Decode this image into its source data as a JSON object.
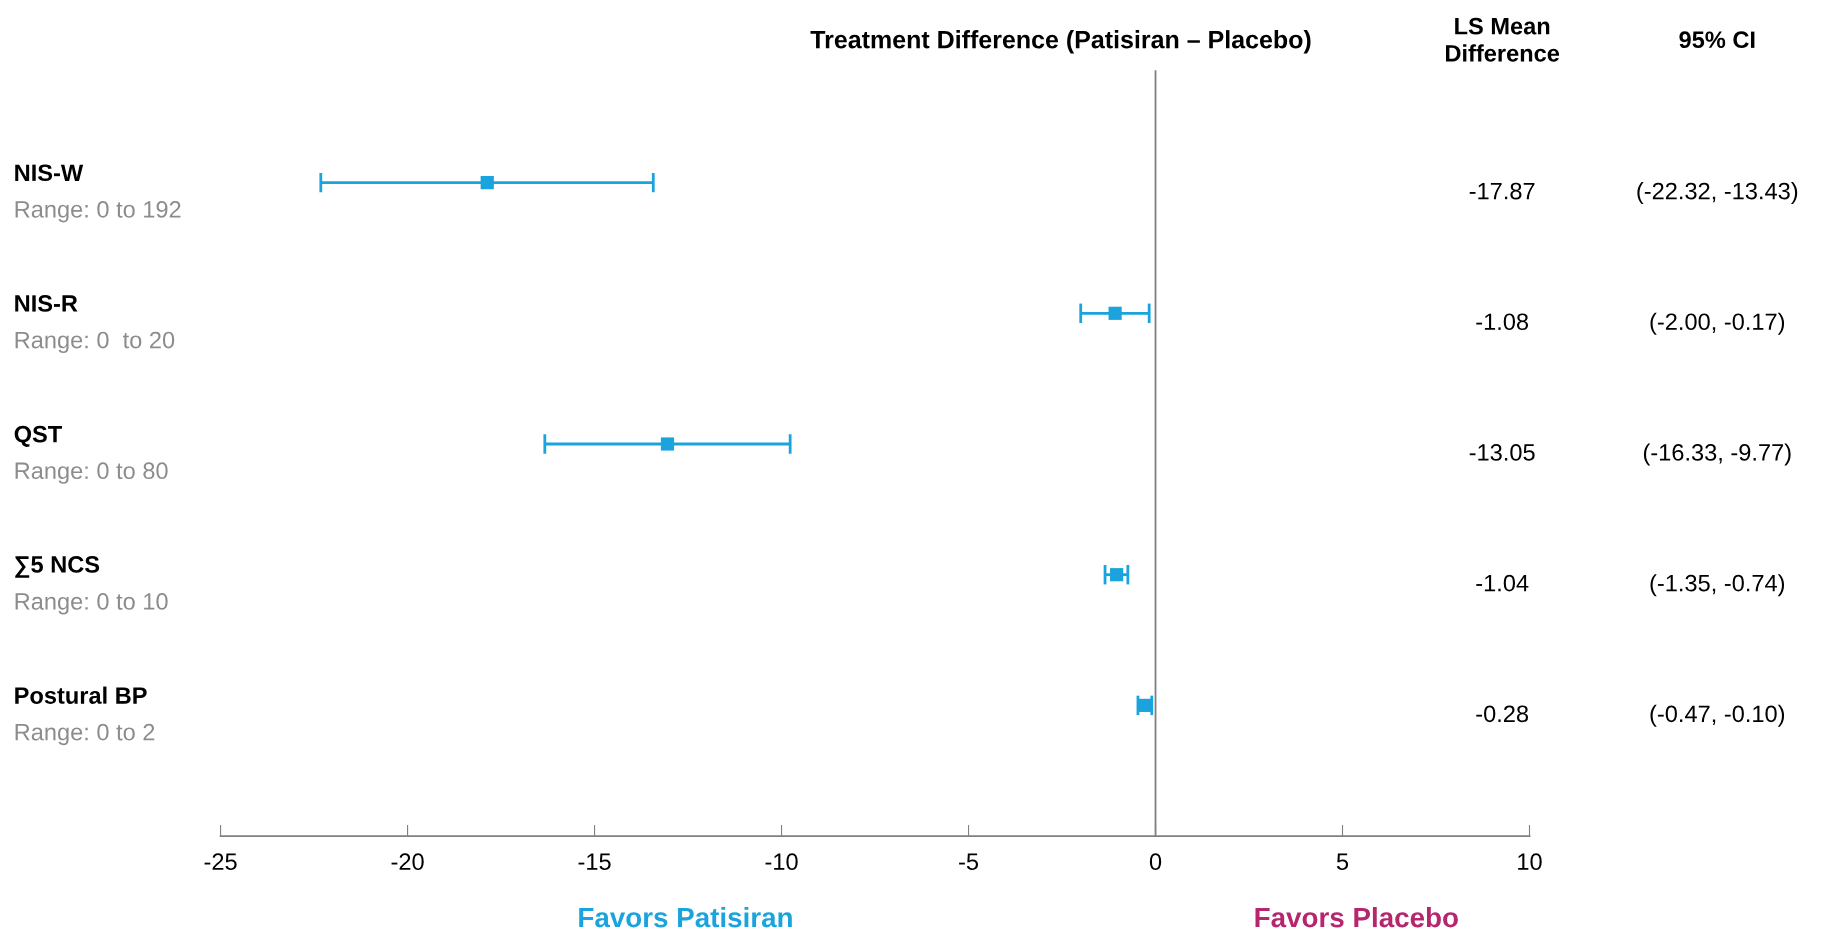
{
  "chart_data": {
    "type": "scatter",
    "orientation": "horizontal",
    "title": "Treatment Difference (Patisiran – Placebo)",
    "categories": [
      "NIS-W\nRange: 0 to 192",
      "NIS-R\nRange: 0  to 20",
      "QST\nRange: 0 to 80",
      "∑5 NCS\nRange: 0 to 10",
      "Postural BP\nRange: 0 to 2"
    ],
    "series": [
      {
        "color": "#1aa3dc",
        "values": [
          -17.87,
          -1.08,
          -13.05,
          -1.04,
          -0.28
        ],
        "errors": [
          [
            -22.32,
            -13.43
          ],
          [
            -2.0,
            -0.17
          ],
          [
            -16.33,
            -9.77
          ],
          [
            -1.35,
            -0.74
          ],
          [
            -0.47,
            -0.1
          ]
        ]
      }
    ],
    "marker": "square",
    "xlim": [
      -25,
      10
    ],
    "xticks": [
      -25,
      -20,
      -15,
      -10,
      -5,
      0,
      5,
      10
    ],
    "ref_lines": [
      {
        "axis": "x",
        "value": 0,
        "color": "#808080"
      }
    ],
    "annotations": [
      "LS Mean\nDifference",
      "95% CI",
      "-17.87",
      "-1.08",
      "-13.05",
      "-1.04",
      "-0.28",
      "(-22.32, -13.43)",
      "(-2.00, -0.17)",
      "(-16.33, -9.77)",
      "(-1.35, -0.74)",
      "(-0.47, -0.10)",
      "Favors Patisiran",
      "Favors Placebo"
    ]
  }
}
